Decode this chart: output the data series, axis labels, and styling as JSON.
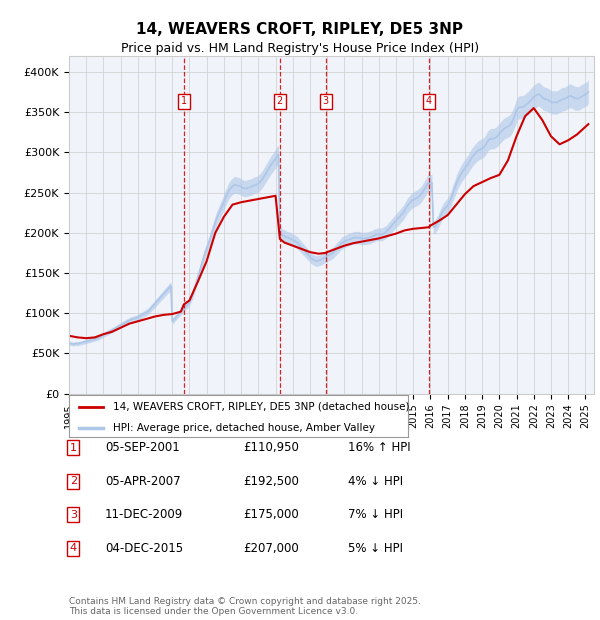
{
  "title": "14, WEAVERS CROFT, RIPLEY, DE5 3NP",
  "subtitle": "Price paid vs. HM Land Registry's House Price Index (HPI)",
  "ylabel_ticks": [
    "£0",
    "£50K",
    "£100K",
    "£150K",
    "£200K",
    "£250K",
    "£300K",
    "£350K",
    "£400K"
  ],
  "ytick_values": [
    0,
    50000,
    100000,
    150000,
    200000,
    250000,
    300000,
    350000,
    400000
  ],
  "ylim": [
    0,
    420000
  ],
  "xlim_start": 1995.0,
  "xlim_end": 2025.5,
  "hpi_color": "#aec6e8",
  "price_color": "#cc0000",
  "legend_border_color": "#999999",
  "purchase_label": "14, WEAVERS CROFT, RIPLEY, DE5 3NP (detached house)",
  "hpi_label": "HPI: Average price, detached house, Amber Valley",
  "transactions": [
    {
      "id": 1,
      "date": "05-SEP-2001",
      "price": 110950,
      "pct": "16%",
      "dir": "↑",
      "x_year": 2001.67
    },
    {
      "id": 2,
      "date": "05-APR-2007",
      "price": 192500,
      "pct": "4%",
      "dir": "↓",
      "x_year": 2007.25
    },
    {
      "id": 3,
      "date": "11-DEC-2009",
      "price": 175000,
      "pct": "7%",
      "dir": "↓",
      "x_year": 2009.92
    },
    {
      "id": 4,
      "date": "04-DEC-2015",
      "price": 207000,
      "pct": "5%",
      "dir": "↓",
      "x_year": 2015.92
    }
  ],
  "footer_line1": "Contains HM Land Registry data © Crown copyright and database right 2025.",
  "footer_line2": "This data is licensed under the Open Government Licence v3.0.",
  "background_color": "#ffffff",
  "plot_bg_color": "#f0f4fa",
  "grid_color": "#cccccc",
  "hpi_data": [
    [
      1995.0,
      62000
    ],
    [
      1995.08,
      62500
    ],
    [
      1995.17,
      62000
    ],
    [
      1995.25,
      61500
    ],
    [
      1995.33,
      62000
    ],
    [
      1995.42,
      62500
    ],
    [
      1995.5,
      62000
    ],
    [
      1995.58,
      62500
    ],
    [
      1995.67,
      63000
    ],
    [
      1995.75,
      63500
    ],
    [
      1995.83,
      64000
    ],
    [
      1995.92,
      64500
    ],
    [
      1996.0,
      65000
    ],
    [
      1996.08,
      65500
    ],
    [
      1996.17,
      66000
    ],
    [
      1996.25,
      66500
    ],
    [
      1996.33,
      67000
    ],
    [
      1996.42,
      67500
    ],
    [
      1996.5,
      68000
    ],
    [
      1996.58,
      68500
    ],
    [
      1996.67,
      69000
    ],
    [
      1996.75,
      70000
    ],
    [
      1996.83,
      71000
    ],
    [
      1996.92,
      72000
    ],
    [
      1997.0,
      73000
    ],
    [
      1997.08,
      74000
    ],
    [
      1997.17,
      75000
    ],
    [
      1997.25,
      76000
    ],
    [
      1997.33,
      77000
    ],
    [
      1997.42,
      78000
    ],
    [
      1997.5,
      79000
    ],
    [
      1997.58,
      80000
    ],
    [
      1997.67,
      81000
    ],
    [
      1997.75,
      82000
    ],
    [
      1997.83,
      83000
    ],
    [
      1997.92,
      84000
    ],
    [
      1998.0,
      85000
    ],
    [
      1998.08,
      86000
    ],
    [
      1998.17,
      87000
    ],
    [
      1998.25,
      88000
    ],
    [
      1998.33,
      89000
    ],
    [
      1998.42,
      90000
    ],
    [
      1998.5,
      91000
    ],
    [
      1998.58,
      92000
    ],
    [
      1998.67,
      92500
    ],
    [
      1998.75,
      93000
    ],
    [
      1998.83,
      93500
    ],
    [
      1998.92,
      94000
    ],
    [
      1999.0,
      95000
    ],
    [
      1999.08,
      96000
    ],
    [
      1999.17,
      97000
    ],
    [
      1999.25,
      98000
    ],
    [
      1999.33,
      99000
    ],
    [
      1999.42,
      100000
    ],
    [
      1999.5,
      101000
    ],
    [
      1999.58,
      102000
    ],
    [
      1999.67,
      104000
    ],
    [
      1999.75,
      106000
    ],
    [
      1999.83,
      108000
    ],
    [
      1999.92,
      110000
    ],
    [
      2000.0,
      112000
    ],
    [
      2000.08,
      114000
    ],
    [
      2000.17,
      116000
    ],
    [
      2000.25,
      118000
    ],
    [
      2000.33,
      120000
    ],
    [
      2000.42,
      122000
    ],
    [
      2000.5,
      124000
    ],
    [
      2000.58,
      126000
    ],
    [
      2000.67,
      128000
    ],
    [
      2000.75,
      130000
    ],
    [
      2000.83,
      132000
    ],
    [
      2000.92,
      134000
    ],
    [
      2001.0,
      90000
    ],
    [
      2001.08,
      92000
    ],
    [
      2001.17,
      94000
    ],
    [
      2001.25,
      96000
    ],
    [
      2001.33,
      98000
    ],
    [
      2001.42,
      100000
    ],
    [
      2001.5,
      102000
    ],
    [
      2001.58,
      104000
    ],
    [
      2001.67,
      106000
    ],
    [
      2001.75,
      108000
    ],
    [
      2001.83,
      110000
    ],
    [
      2001.92,
      112000
    ],
    [
      2002.0,
      114000
    ],
    [
      2002.08,
      118000
    ],
    [
      2002.17,
      122000
    ],
    [
      2002.25,
      128000
    ],
    [
      2002.33,
      134000
    ],
    [
      2002.42,
      140000
    ],
    [
      2002.5,
      146000
    ],
    [
      2002.58,
      152000
    ],
    [
      2002.67,
      158000
    ],
    [
      2002.75,
      164000
    ],
    [
      2002.83,
      170000
    ],
    [
      2002.92,
      176000
    ],
    [
      2003.0,
      180000
    ],
    [
      2003.08,
      185000
    ],
    [
      2003.17,
      190000
    ],
    [
      2003.25,
      196000
    ],
    [
      2003.33,
      202000
    ],
    [
      2003.42,
      207000
    ],
    [
      2003.5,
      213000
    ],
    [
      2003.58,
      218000
    ],
    [
      2003.67,
      222000
    ],
    [
      2003.75,
      226000
    ],
    [
      2003.83,
      230000
    ],
    [
      2003.92,
      234000
    ],
    [
      2004.0,
      238000
    ],
    [
      2004.08,
      243000
    ],
    [
      2004.17,
      247000
    ],
    [
      2004.25,
      251000
    ],
    [
      2004.33,
      254000
    ],
    [
      2004.42,
      256000
    ],
    [
      2004.5,
      258000
    ],
    [
      2004.58,
      259000
    ],
    [
      2004.67,
      259500
    ],
    [
      2004.75,
      259000
    ],
    [
      2004.83,
      258500
    ],
    [
      2004.92,
      258000
    ],
    [
      2005.0,
      257000
    ],
    [
      2005.08,
      256000
    ],
    [
      2005.17,
      255000
    ],
    [
      2005.25,
      255000
    ],
    [
      2005.33,
      255500
    ],
    [
      2005.42,
      256000
    ],
    [
      2005.5,
      256500
    ],
    [
      2005.58,
      257000
    ],
    [
      2005.67,
      258000
    ],
    [
      2005.75,
      259000
    ],
    [
      2005.83,
      259500
    ],
    [
      2005.92,
      260000
    ],
    [
      2006.0,
      261000
    ],
    [
      2006.08,
      263000
    ],
    [
      2006.17,
      265000
    ],
    [
      2006.25,
      267000
    ],
    [
      2006.33,
      270000
    ],
    [
      2006.42,
      273000
    ],
    [
      2006.5,
      276000
    ],
    [
      2006.58,
      279000
    ],
    [
      2006.67,
      282000
    ],
    [
      2006.75,
      285000
    ],
    [
      2006.83,
      287000
    ],
    [
      2006.92,
      290000
    ],
    [
      2007.0,
      292000
    ],
    [
      2007.08,
      295000
    ],
    [
      2007.17,
      297000
    ],
    [
      2007.25,
      200000
    ],
    [
      2007.33,
      198000
    ],
    [
      2007.42,
      197000
    ],
    [
      2007.5,
      196000
    ],
    [
      2007.58,
      195000
    ],
    [
      2007.67,
      194000
    ],
    [
      2007.75,
      194000
    ],
    [
      2007.83,
      193000
    ],
    [
      2007.92,
      192000
    ],
    [
      2008.0,
      191000
    ],
    [
      2008.08,
      190000
    ],
    [
      2008.17,
      189000
    ],
    [
      2008.25,
      188000
    ],
    [
      2008.33,
      186000
    ],
    [
      2008.42,
      184000
    ],
    [
      2008.5,
      182000
    ],
    [
      2008.58,
      180000
    ],
    [
      2008.67,
      178000
    ],
    [
      2008.75,
      176000
    ],
    [
      2008.83,
      174000
    ],
    [
      2008.92,
      172000
    ],
    [
      2009.0,
      170000
    ],
    [
      2009.08,
      168000
    ],
    [
      2009.17,
      167000
    ],
    [
      2009.25,
      166000
    ],
    [
      2009.33,
      165000
    ],
    [
      2009.42,
      165000
    ],
    [
      2009.5,
      165500
    ],
    [
      2009.58,
      166000
    ],
    [
      2009.67,
      167000
    ],
    [
      2009.75,
      168000
    ],
    [
      2009.83,
      169000
    ],
    [
      2009.92,
      170000
    ],
    [
      2010.0,
      171000
    ],
    [
      2010.08,
      172000
    ],
    [
      2010.17,
      173000
    ],
    [
      2010.25,
      174000
    ],
    [
      2010.33,
      175000
    ],
    [
      2010.42,
      177000
    ],
    [
      2010.5,
      179000
    ],
    [
      2010.58,
      181000
    ],
    [
      2010.67,
      183000
    ],
    [
      2010.75,
      185000
    ],
    [
      2010.83,
      187000
    ],
    [
      2010.92,
      188000
    ],
    [
      2011.0,
      189000
    ],
    [
      2011.08,
      190000
    ],
    [
      2011.17,
      191000
    ],
    [
      2011.25,
      191500
    ],
    [
      2011.33,
      192000
    ],
    [
      2011.42,
      193000
    ],
    [
      2011.5,
      193500
    ],
    [
      2011.58,
      194000
    ],
    [
      2011.67,
      194000
    ],
    [
      2011.75,
      194000
    ],
    [
      2011.83,
      194000
    ],
    [
      2011.92,
      193500
    ],
    [
      2012.0,
      193000
    ],
    [
      2012.08,
      193000
    ],
    [
      2012.17,
      193000
    ],
    [
      2012.25,
      193000
    ],
    [
      2012.33,
      193500
    ],
    [
      2012.42,
      194000
    ],
    [
      2012.5,
      194500
    ],
    [
      2012.58,
      195000
    ],
    [
      2012.67,
      196000
    ],
    [
      2012.75,
      197000
    ],
    [
      2012.83,
      197500
    ],
    [
      2012.92,
      198000
    ],
    [
      2013.0,
      198000
    ],
    [
      2013.08,
      198000
    ],
    [
      2013.17,
      198000
    ],
    [
      2013.25,
      199000
    ],
    [
      2013.33,
      200000
    ],
    [
      2013.42,
      201000
    ],
    [
      2013.5,
      203000
    ],
    [
      2013.58,
      205000
    ],
    [
      2013.67,
      207000
    ],
    [
      2013.75,
      209000
    ],
    [
      2013.83,
      211000
    ],
    [
      2013.92,
      213000
    ],
    [
      2014.0,
      215000
    ],
    [
      2014.08,
      217000
    ],
    [
      2014.17,
      219000
    ],
    [
      2014.25,
      221000
    ],
    [
      2014.33,
      223000
    ],
    [
      2014.42,
      225000
    ],
    [
      2014.5,
      228000
    ],
    [
      2014.58,
      231000
    ],
    [
      2014.67,
      234000
    ],
    [
      2014.75,
      236000
    ],
    [
      2014.83,
      238000
    ],
    [
      2014.92,
      240000
    ],
    [
      2015.0,
      241000
    ],
    [
      2015.08,
      242000
    ],
    [
      2015.17,
      243000
    ],
    [
      2015.25,
      244000
    ],
    [
      2015.33,
      245000
    ],
    [
      2015.42,
      247000
    ],
    [
      2015.5,
      249000
    ],
    [
      2015.58,
      252000
    ],
    [
      2015.67,
      255000
    ],
    [
      2015.75,
      258000
    ],
    [
      2015.83,
      261000
    ],
    [
      2015.92,
      262000
    ],
    [
      2016.0,
      262000
    ],
    [
      2016.08,
      262000
    ],
    [
      2016.17,
      207000
    ],
    [
      2016.25,
      207000
    ],
    [
      2016.33,
      210000
    ],
    [
      2016.42,
      213000
    ],
    [
      2016.5,
      217000
    ],
    [
      2016.58,
      221000
    ],
    [
      2016.67,
      225000
    ],
    [
      2016.75,
      228000
    ],
    [
      2016.83,
      230000
    ],
    [
      2016.92,
      232000
    ],
    [
      2017.0,
      234000
    ],
    [
      2017.08,
      237000
    ],
    [
      2017.17,
      241000
    ],
    [
      2017.25,
      246000
    ],
    [
      2017.33,
      251000
    ],
    [
      2017.42,
      256000
    ],
    [
      2017.5,
      261000
    ],
    [
      2017.58,
      265000
    ],
    [
      2017.67,
      269000
    ],
    [
      2017.75,
      272000
    ],
    [
      2017.83,
      275000
    ],
    [
      2017.92,
      278000
    ],
    [
      2018.0,
      280000
    ],
    [
      2018.08,
      283000
    ],
    [
      2018.17,
      285000
    ],
    [
      2018.25,
      288000
    ],
    [
      2018.33,
      291000
    ],
    [
      2018.42,
      294000
    ],
    [
      2018.5,
      296000
    ],
    [
      2018.58,
      298000
    ],
    [
      2018.67,
      300000
    ],
    [
      2018.75,
      302000
    ],
    [
      2018.83,
      303000
    ],
    [
      2018.92,
      304000
    ],
    [
      2019.0,
      305000
    ],
    [
      2019.08,
      306000
    ],
    [
      2019.17,
      308000
    ],
    [
      2019.25,
      311000
    ],
    [
      2019.33,
      314000
    ],
    [
      2019.42,
      316000
    ],
    [
      2019.5,
      317000
    ],
    [
      2019.58,
      317000
    ],
    [
      2019.67,
      317000
    ],
    [
      2019.75,
      318000
    ],
    [
      2019.83,
      319000
    ],
    [
      2019.92,
      321000
    ],
    [
      2020.0,
      323000
    ],
    [
      2020.08,
      325000
    ],
    [
      2020.17,
      327000
    ],
    [
      2020.25,
      329000
    ],
    [
      2020.33,
      330000
    ],
    [
      2020.42,
      331000
    ],
    [
      2020.5,
      332000
    ],
    [
      2020.58,
      333000
    ],
    [
      2020.67,
      335000
    ],
    [
      2020.75,
      338000
    ],
    [
      2020.83,
      342000
    ],
    [
      2020.92,
      347000
    ],
    [
      2021.0,
      352000
    ],
    [
      2021.08,
      355000
    ],
    [
      2021.17,
      356000
    ],
    [
      2021.25,
      356000
    ],
    [
      2021.33,
      356000
    ],
    [
      2021.42,
      357000
    ],
    [
      2021.5,
      358000
    ],
    [
      2021.58,
      360000
    ],
    [
      2021.67,
      361000
    ],
    [
      2021.75,
      363000
    ],
    [
      2021.83,
      365000
    ],
    [
      2021.92,
      367000
    ],
    [
      2022.0,
      369000
    ],
    [
      2022.08,
      370000
    ],
    [
      2022.17,
      371000
    ],
    [
      2022.25,
      372000
    ],
    [
      2022.33,
      372000
    ],
    [
      2022.42,
      370000
    ],
    [
      2022.5,
      368000
    ],
    [
      2022.58,
      367000
    ],
    [
      2022.67,
      366000
    ],
    [
      2022.75,
      366000
    ],
    [
      2022.83,
      365000
    ],
    [
      2022.92,
      364000
    ],
    [
      2023.0,
      363000
    ],
    [
      2023.08,
      362000
    ],
    [
      2023.17,
      362000
    ],
    [
      2023.25,
      362000
    ],
    [
      2023.33,
      362000
    ],
    [
      2023.42,
      363000
    ],
    [
      2023.5,
      364000
    ],
    [
      2023.58,
      365000
    ],
    [
      2023.67,
      366000
    ],
    [
      2023.75,
      366000
    ],
    [
      2023.83,
      367000
    ],
    [
      2023.92,
      368000
    ],
    [
      2024.0,
      369000
    ],
    [
      2024.08,
      370000
    ],
    [
      2024.17,
      370000
    ],
    [
      2024.25,
      369000
    ],
    [
      2024.33,
      368000
    ],
    [
      2024.42,
      367000
    ],
    [
      2024.5,
      367000
    ],
    [
      2024.58,
      367000
    ],
    [
      2024.67,
      368000
    ],
    [
      2024.75,
      369000
    ],
    [
      2024.83,
      370000
    ],
    [
      2024.92,
      371000
    ],
    [
      2025.0,
      372000
    ],
    [
      2025.08,
      373000
    ],
    [
      2025.17,
      375000
    ]
  ],
  "price_line": [
    [
      1995.0,
      72000
    ],
    [
      1995.5,
      70000
    ],
    [
      1996.0,
      69000
    ],
    [
      1996.5,
      70000
    ],
    [
      1997.0,
      74000
    ],
    [
      1997.5,
      77000
    ],
    [
      1998.0,
      82000
    ],
    [
      1998.5,
      87000
    ],
    [
      1999.0,
      90000
    ],
    [
      1999.5,
      93000
    ],
    [
      2000.0,
      96000
    ],
    [
      2000.5,
      98000
    ],
    [
      2001.0,
      99000
    ],
    [
      2001.5,
      102000
    ],
    [
      2001.67,
      110950
    ],
    [
      2002.0,
      116000
    ],
    [
      2002.5,
      140000
    ],
    [
      2003.0,
      165000
    ],
    [
      2003.5,
      200000
    ],
    [
      2004.0,
      220000
    ],
    [
      2004.5,
      235000
    ],
    [
      2005.0,
      238000
    ],
    [
      2005.5,
      240000
    ],
    [
      2006.0,
      242000
    ],
    [
      2006.5,
      244000
    ],
    [
      2007.0,
      246000
    ],
    [
      2007.25,
      192500
    ],
    [
      2007.5,
      188000
    ],
    [
      2008.0,
      184000
    ],
    [
      2008.5,
      180000
    ],
    [
      2009.0,
      176000
    ],
    [
      2009.5,
      174000
    ],
    [
      2009.92,
      175000
    ],
    [
      2010.0,
      176000
    ],
    [
      2010.5,
      180000
    ],
    [
      2011.0,
      184000
    ],
    [
      2011.5,
      187000
    ],
    [
      2012.0,
      189000
    ],
    [
      2012.5,
      191000
    ],
    [
      2013.0,
      193000
    ],
    [
      2013.5,
      196000
    ],
    [
      2014.0,
      199000
    ],
    [
      2014.5,
      203000
    ],
    [
      2015.0,
      205000
    ],
    [
      2015.5,
      206000
    ],
    [
      2015.92,
      207000
    ],
    [
      2016.0,
      209000
    ],
    [
      2016.5,
      215000
    ],
    [
      2017.0,
      222000
    ],
    [
      2017.5,
      235000
    ],
    [
      2018.0,
      248000
    ],
    [
      2018.5,
      258000
    ],
    [
      2019.0,
      263000
    ],
    [
      2019.5,
      268000
    ],
    [
      2020.0,
      272000
    ],
    [
      2020.5,
      290000
    ],
    [
      2021.0,
      320000
    ],
    [
      2021.5,
      345000
    ],
    [
      2022.0,
      355000
    ],
    [
      2022.5,
      340000
    ],
    [
      2023.0,
      320000
    ],
    [
      2023.5,
      310000
    ],
    [
      2024.0,
      315000
    ],
    [
      2024.5,
      322000
    ],
    [
      2025.17,
      335000
    ]
  ]
}
